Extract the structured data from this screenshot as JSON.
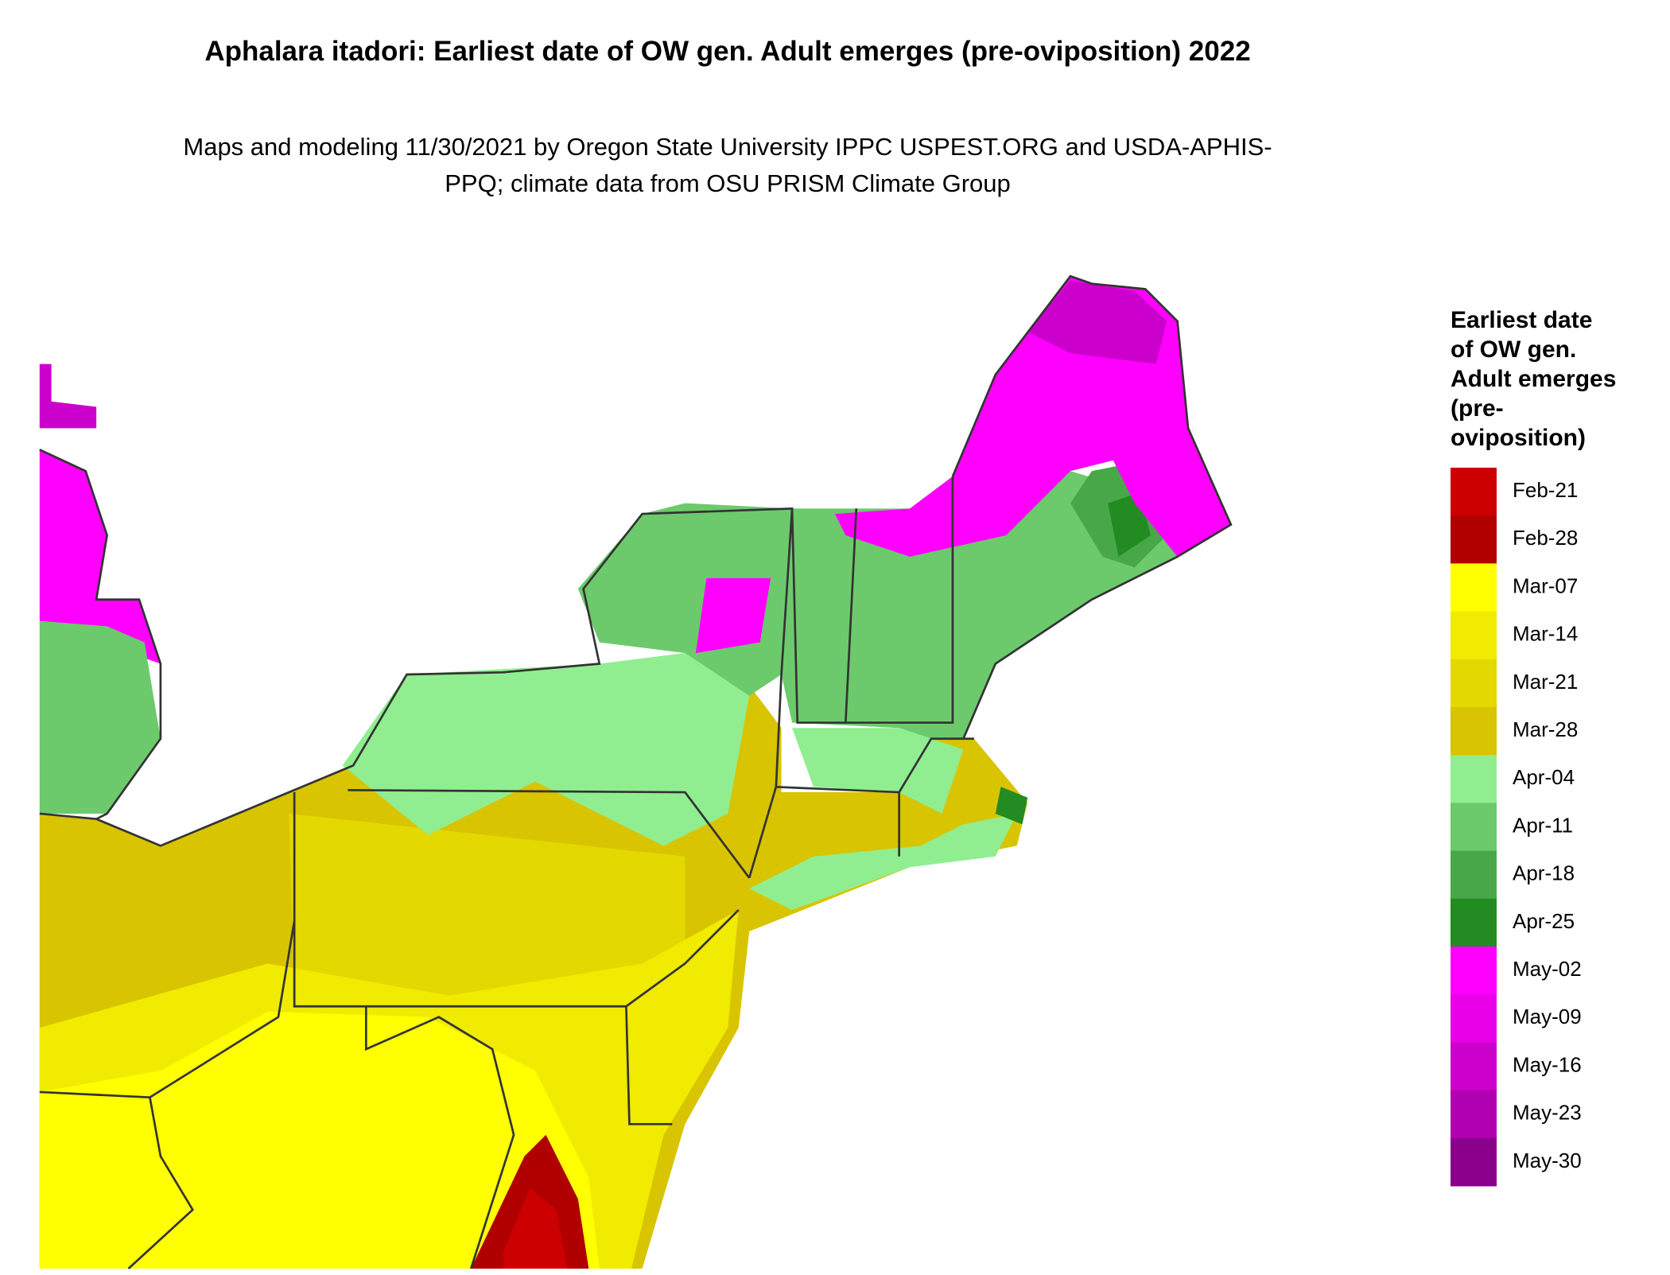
{
  "title": "Aphalara itadori: Earliest date of OW gen. Adult emerges (pre-oviposition) 2022",
  "subtitle": "Maps and modeling 11/30/2021 by Oregon State University IPPC USPEST.ORG and USDA-APHIS-PPQ; climate data from OSU PRISM Climate Group",
  "legend": {
    "title": "Earliest date of OW gen. Adult emerges (pre-oviposition)",
    "items": [
      {
        "label": "Feb-21",
        "color": "#cc0000"
      },
      {
        "label": "Feb-28",
        "color": "#b00000"
      },
      {
        "label": "Mar-07",
        "color": "#ffff00"
      },
      {
        "label": "Mar-14",
        "color": "#f0eb00"
      },
      {
        "label": "Mar-21",
        "color": "#e3d800"
      },
      {
        "label": "Mar-28",
        "color": "#d8c400"
      },
      {
        "label": "Apr-04",
        "color": "#90ee90"
      },
      {
        "label": "Apr-11",
        "color": "#6cca6c"
      },
      {
        "label": "Apr-18",
        "color": "#48a848"
      },
      {
        "label": "Apr-25",
        "color": "#228b22"
      },
      {
        "label": "May-02",
        "color": "#ff00ff"
      },
      {
        "label": "May-09",
        "color": "#e800e8"
      },
      {
        "label": "May-16",
        "color": "#cc00cc"
      },
      {
        "label": "May-23",
        "color": "#b000b0"
      },
      {
        "label": "May-30",
        "color": "#8b008b"
      }
    ]
  }
}
